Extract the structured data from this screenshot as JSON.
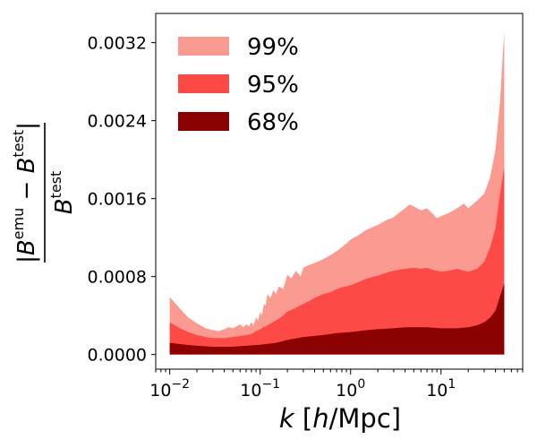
{
  "chart_data": {
    "type": "area",
    "x_scale": "log",
    "xlim": [
      0.007,
      80
    ],
    "ylim": [
      -0.00015,
      0.0035
    ],
    "xlabel": {
      "italic": "k",
      "rest": " [",
      "italic2": "h",
      "rest2": "/Mpc]"
    },
    "ylabel": {
      "abs_open": "|",
      "sym": "B",
      "sup_emu": "emu",
      "minus": " − ",
      "sup_test": "test",
      "abs_close": "|",
      "den_sym": "B",
      "den_sup": "test"
    },
    "y_ticks": [
      {
        "value": 0.0,
        "label": "0.0000"
      },
      {
        "value": 0.0008,
        "label": "0.0008"
      },
      {
        "value": 0.0016,
        "label": "0.0016"
      },
      {
        "value": 0.0024,
        "label": "0.0024"
      },
      {
        "value": 0.0032,
        "label": "0.0032"
      }
    ],
    "x_ticks": [
      {
        "value": 0.01,
        "base": "10",
        "exp": "−2"
      },
      {
        "value": 0.1,
        "base": "10",
        "exp": "−1"
      },
      {
        "value": 1,
        "base": "10",
        "exp": "0"
      },
      {
        "value": 10,
        "base": "10",
        "exp": "1"
      }
    ],
    "legend_position": "top-left",
    "series": [
      {
        "name": "99%",
        "color": "#fa9a90",
        "x": [
          0.01,
          0.013,
          0.016,
          0.02,
          0.025,
          0.03,
          0.035,
          0.04,
          0.045,
          0.05,
          0.055,
          0.06,
          0.065,
          0.07,
          0.075,
          0.08,
          0.085,
          0.09,
          0.095,
          0.1,
          0.105,
          0.11,
          0.115,
          0.12,
          0.13,
          0.14,
          0.15,
          0.16,
          0.18,
          0.2,
          0.22,
          0.25,
          0.28,
          0.3,
          0.35,
          0.4,
          0.45,
          0.5,
          0.6,
          0.7,
          0.8,
          0.9,
          1.0,
          1.2,
          1.5,
          2.0,
          2.5,
          3.0,
          3.5,
          4.0,
          4.5,
          5.0,
          6.0,
          7.0,
          8.0,
          9.0,
          10,
          12,
          15,
          18,
          20,
          25,
          30,
          35,
          40,
          45,
          50
        ],
        "values": [
          0.00059,
          0.00047,
          0.00038,
          0.00032,
          0.00027,
          0.00025,
          0.00024,
          0.00026,
          0.00028,
          0.00027,
          0.00029,
          0.00031,
          0.00028,
          0.00031,
          0.00029,
          0.00033,
          0.0003,
          0.00038,
          0.00035,
          0.00044,
          0.0004,
          0.00052,
          0.0005,
          0.00062,
          0.00058,
          0.00066,
          0.00062,
          0.0007,
          0.00067,
          0.00082,
          0.00078,
          0.00086,
          0.0008,
          0.00089,
          0.00092,
          0.00094,
          0.00096,
          0.00098,
          0.00102,
          0.00106,
          0.0011,
          0.00114,
          0.00118,
          0.00122,
          0.00128,
          0.00133,
          0.00138,
          0.00141,
          0.00146,
          0.0015,
          0.00154,
          0.00152,
          0.00148,
          0.0015,
          0.00145,
          0.0014,
          0.00142,
          0.00145,
          0.0015,
          0.00155,
          0.0015,
          0.00158,
          0.00165,
          0.00182,
          0.0021,
          0.0026,
          0.00332
        ]
      },
      {
        "name": "95%",
        "color": "#fe4a47",
        "x": [
          0.01,
          0.013,
          0.016,
          0.02,
          0.025,
          0.03,
          0.04,
          0.05,
          0.06,
          0.07,
          0.08,
          0.09,
          0.1,
          0.12,
          0.15,
          0.18,
          0.2,
          0.25,
          0.3,
          0.35,
          0.4,
          0.5,
          0.6,
          0.7,
          0.8,
          1.0,
          1.2,
          1.5,
          2.0,
          2.5,
          3.0,
          4.0,
          5.0,
          6.0,
          7.0,
          8.0,
          10,
          12,
          15,
          18,
          20,
          25,
          30,
          35,
          40,
          45,
          50
        ],
        "values": [
          0.00033,
          0.00027,
          0.00023,
          0.0002,
          0.00018,
          0.00017,
          0.00017,
          0.00018,
          0.00019,
          0.0002,
          0.00021,
          0.00024,
          0.00026,
          0.0003,
          0.00035,
          0.0004,
          0.00044,
          0.00048,
          0.00052,
          0.00055,
          0.00058,
          0.00062,
          0.00064,
          0.00067,
          0.00069,
          0.00071,
          0.00074,
          0.00078,
          0.00081,
          0.00084,
          0.00086,
          0.00088,
          0.00089,
          0.00088,
          0.00089,
          0.00087,
          0.00085,
          0.00086,
          0.00088,
          0.00086,
          0.00085,
          0.00088,
          0.00095,
          0.0011,
          0.0013,
          0.00165,
          0.00193
        ]
      },
      {
        "name": "68%",
        "color": "#8b0000",
        "x": [
          0.01,
          0.015,
          0.02,
          0.03,
          0.04,
          0.05,
          0.07,
          0.1,
          0.15,
          0.2,
          0.3,
          0.5,
          0.7,
          1.0,
          1.5,
          2.0,
          3.0,
          4.0,
          5.0,
          7.0,
          10,
          15,
          20,
          25,
          30,
          35,
          40,
          45,
          50
        ],
        "values": [
          0.00012,
          0.0001,
          9e-05,
          8e-05,
          8e-05,
          8e-05,
          9e-05,
          0.0001,
          0.00012,
          0.00015,
          0.00018,
          0.0002,
          0.00022,
          0.00023,
          0.00025,
          0.00026,
          0.00027,
          0.00028,
          0.00028,
          0.00028,
          0.00027,
          0.00027,
          0.00028,
          0.0003,
          0.00033,
          0.00038,
          0.00045,
          0.0006,
          0.00073
        ]
      }
    ]
  }
}
